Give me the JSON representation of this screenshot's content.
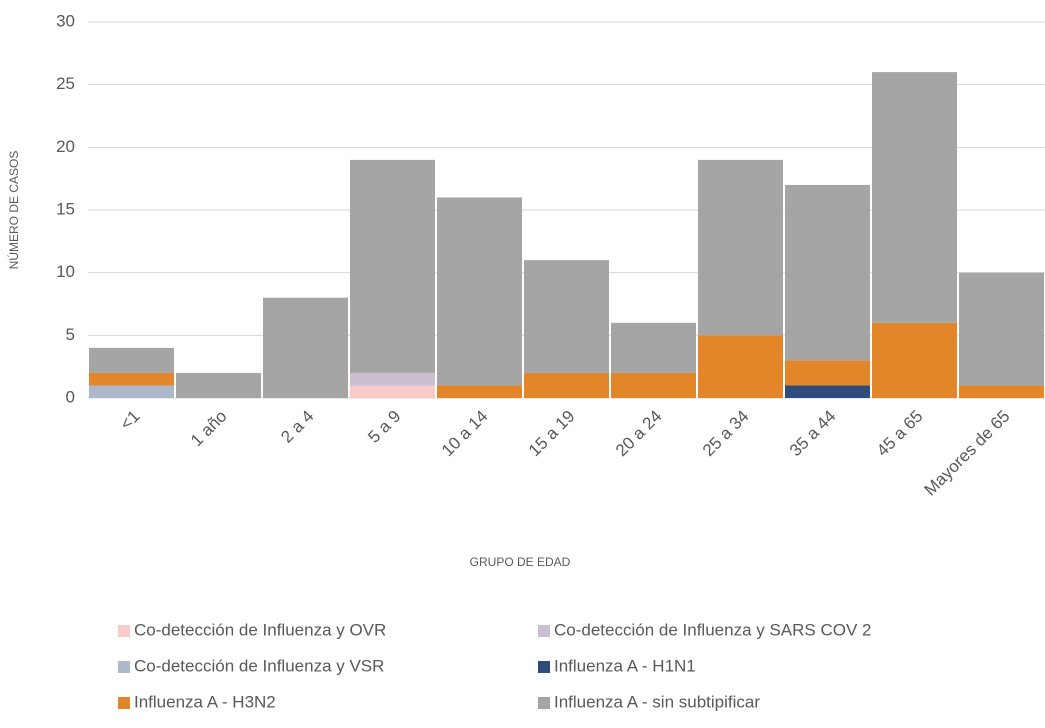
{
  "chart_data": {
    "type": "bar",
    "stacked": true,
    "x_label": "GRUPO DE EDAD",
    "y_label": "NÚMERO DE CASOS",
    "categories": [
      "<1",
      "1 año",
      "2 a 4",
      "5 a 9",
      "10 a 14",
      "15 a 19",
      "20 a 24",
      "25 a 34",
      "35 a 44",
      "45 a 65",
      "Mayores de 65"
    ],
    "series": [
      {
        "name": "Co-detección de Influenza y OVR",
        "color": "#f8cbcb",
        "values": [
          0,
          0,
          0,
          1,
          0,
          0,
          0,
          0,
          0,
          0,
          0
        ]
      },
      {
        "name": "Co-detección de Influenza y SARS COV 2",
        "color": "#c9bfd0",
        "values": [
          0,
          0,
          0,
          1,
          0,
          0,
          0,
          0,
          0,
          0,
          0
        ]
      },
      {
        "name": "Co-detección de Influenza y VSR",
        "color": "#adb9ca",
        "values": [
          1,
          0,
          0,
          0,
          0,
          0,
          0,
          0,
          0,
          0,
          0
        ]
      },
      {
        "name": "Influenza A - H1N1",
        "color": "#2f4b7c",
        "values": [
          0,
          0,
          0,
          0,
          0,
          0,
          0,
          0,
          1,
          0,
          0
        ]
      },
      {
        "name": "Influenza A - H3N2",
        "color": "#e3862a",
        "values": [
          1,
          0,
          0,
          0,
          1,
          2,
          2,
          5,
          2,
          6,
          1
        ]
      },
      {
        "name": "Influenza A - sin subtipificar",
        "color": "#a5a5a5",
        "values": [
          2,
          2,
          8,
          17,
          15,
          9,
          4,
          14,
          14,
          20,
          9
        ]
      }
    ],
    "ylim": [
      0,
      30
    ],
    "yticks": [
      0,
      5,
      10,
      15,
      20,
      25,
      30
    ],
    "grid": true,
    "legend": "bottom"
  }
}
